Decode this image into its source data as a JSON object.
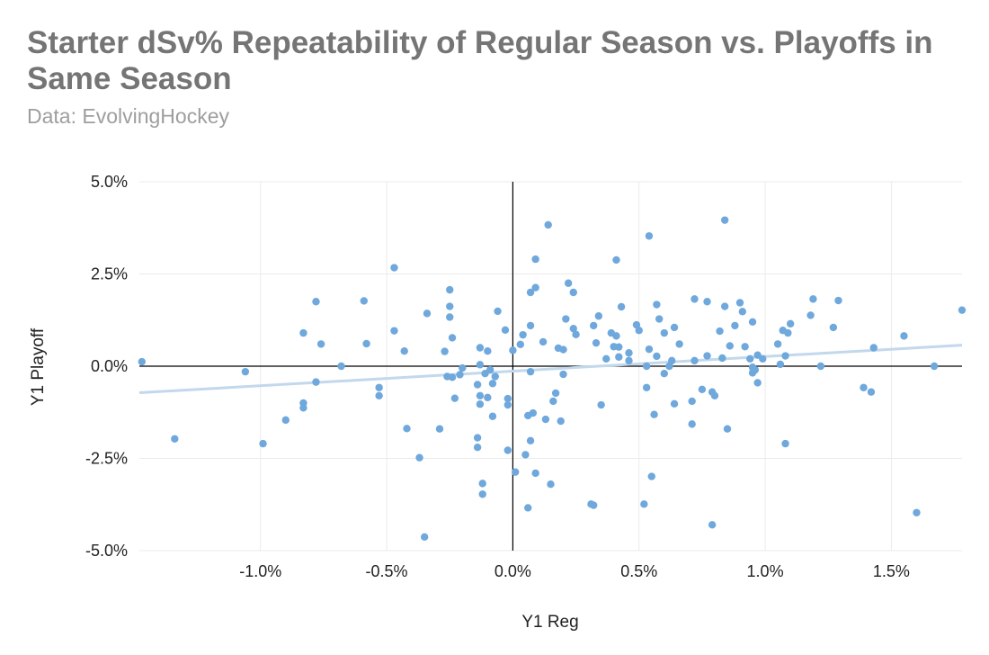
{
  "title": "Starter dSv% Repeatability of Regular Season vs. Playoffs in Same Season",
  "subtitle": "Data: EvolvingHockey",
  "colors": {
    "point": "#6fa8dc",
    "trendline": "#c2d8ec",
    "grid": "#ebebeb",
    "axis": "#000000",
    "title": "#757575",
    "subtitle": "#9e9e9e"
  },
  "chart_data": {
    "type": "scatter",
    "xlabel": "Y1 Reg",
    "ylabel": "Y1 Playoff",
    "xlim": [
      -1.48,
      1.78
    ],
    "ylim": [
      -5.0,
      5.0
    ],
    "x_ticks": [
      -1.0,
      -0.5,
      0.0,
      0.5,
      1.0,
      1.5
    ],
    "x_tick_labels": [
      "-1.0%",
      "-0.5%",
      "0.0%",
      "0.5%",
      "1.0%",
      "1.5%"
    ],
    "y_ticks": [
      -5.0,
      -2.5,
      0.0,
      2.5,
      5.0
    ],
    "y_tick_labels": [
      "-5.0%",
      "-2.5%",
      "0.0%",
      "2.5%",
      "5.0%"
    ],
    "grid": true,
    "legend": "none",
    "trendline": {
      "type": "linear",
      "x": [
        -1.48,
        1.78
      ],
      "y": [
        -0.72,
        0.57
      ]
    },
    "points": [
      [
        -1.47,
        0.12
      ],
      [
        -1.34,
        -1.97
      ],
      [
        -1.06,
        -0.15
      ],
      [
        -0.99,
        -2.1
      ],
      [
        -0.9,
        -1.46
      ],
      [
        -0.83,
        0.9
      ],
      [
        -0.83,
        -1.0
      ],
      [
        -0.83,
        -1.13
      ],
      [
        -0.78,
        1.75
      ],
      [
        -0.78,
        -0.43
      ],
      [
        -0.76,
        0.6
      ],
      [
        -0.68,
        0.0
      ],
      [
        -0.59,
        1.77
      ],
      [
        -0.58,
        0.61
      ],
      [
        -0.53,
        -0.58
      ],
      [
        -0.53,
        -0.8
      ],
      [
        -0.47,
        2.67
      ],
      [
        -0.47,
        0.96
      ],
      [
        -0.43,
        0.41
      ],
      [
        -0.42,
        -1.69
      ],
      [
        -0.37,
        -2.48
      ],
      [
        -0.35,
        -4.63
      ],
      [
        -0.34,
        1.43
      ],
      [
        -0.29,
        -1.7
      ],
      [
        -0.27,
        0.4
      ],
      [
        -0.26,
        -0.28
      ],
      [
        -0.25,
        2.07
      ],
      [
        -0.25,
        1.62
      ],
      [
        -0.25,
        1.33
      ],
      [
        -0.24,
        0.77
      ],
      [
        -0.24,
        -0.3
      ],
      [
        -0.23,
        -0.87
      ],
      [
        -0.21,
        -0.23
      ],
      [
        -0.2,
        -0.05
      ],
      [
        -0.14,
        -1.94
      ],
      [
        -0.14,
        -2.2
      ],
      [
        -0.14,
        -0.5
      ],
      [
        -0.13,
        0.5
      ],
      [
        -0.13,
        0.04
      ],
      [
        -0.13,
        -0.8
      ],
      [
        -0.13,
        -1.03
      ],
      [
        -0.12,
        -3.18
      ],
      [
        -0.12,
        -3.47
      ],
      [
        -0.11,
        -0.2
      ],
      [
        -0.1,
        -0.85
      ],
      [
        -0.1,
        0.41
      ],
      [
        -0.09,
        -0.1
      ],
      [
        -0.08,
        -0.47
      ],
      [
        -0.08,
        -1.36
      ],
      [
        -0.07,
        -0.28
      ],
      [
        -0.06,
        1.49
      ],
      [
        -0.03,
        0.98
      ],
      [
        -0.02,
        -1.05
      ],
      [
        -0.02,
        -0.88
      ],
      [
        -0.02,
        -2.28
      ],
      [
        0.0,
        0.43
      ],
      [
        0.01,
        -2.87
      ],
      [
        0.03,
        0.59
      ],
      [
        0.04,
        0.85
      ],
      [
        0.05,
        -2.4
      ],
      [
        0.06,
        -3.84
      ],
      [
        0.06,
        -1.34
      ],
      [
        0.07,
        1.1
      ],
      [
        0.07,
        -2.02
      ],
      [
        0.07,
        2.0
      ],
      [
        0.07,
        -0.15
      ],
      [
        0.08,
        -1.27
      ],
      [
        0.09,
        2.13
      ],
      [
        0.09,
        2.9
      ],
      [
        0.09,
        -2.9
      ],
      [
        0.12,
        0.66
      ],
      [
        0.13,
        -1.44
      ],
      [
        0.14,
        3.83
      ],
      [
        0.15,
        -3.2
      ],
      [
        0.16,
        -0.95
      ],
      [
        0.17,
        -0.73
      ],
      [
        0.18,
        0.49
      ],
      [
        0.19,
        -1.49
      ],
      [
        0.2,
        -0.22
      ],
      [
        0.2,
        0.45
      ],
      [
        0.21,
        1.28
      ],
      [
        0.22,
        2.25
      ],
      [
        0.24,
        2.0
      ],
      [
        0.24,
        1.02
      ],
      [
        0.25,
        0.86
      ],
      [
        0.31,
        -3.74
      ],
      [
        0.32,
        1.1
      ],
      [
        0.32,
        -3.77
      ],
      [
        0.33,
        0.63
      ],
      [
        0.34,
        1.36
      ],
      [
        0.35,
        -1.05
      ],
      [
        0.37,
        0.2
      ],
      [
        0.39,
        0.9
      ],
      [
        0.4,
        0.53
      ],
      [
        0.41,
        2.88
      ],
      [
        0.41,
        0.82
      ],
      [
        0.42,
        0.52
      ],
      [
        0.42,
        0.25
      ],
      [
        0.43,
        1.61
      ],
      [
        0.46,
        0.36
      ],
      [
        0.46,
        0.15
      ],
      [
        0.49,
        1.12
      ],
      [
        0.5,
        0.97
      ],
      [
        0.52,
        -3.74
      ],
      [
        0.53,
        0.0
      ],
      [
        0.53,
        -0.58
      ],
      [
        0.54,
        3.53
      ],
      [
        0.54,
        0.46
      ],
      [
        0.55,
        -2.99
      ],
      [
        0.56,
        -1.31
      ],
      [
        0.57,
        1.67
      ],
      [
        0.57,
        0.27
      ],
      [
        0.58,
        1.28
      ],
      [
        0.6,
        0.9
      ],
      [
        0.6,
        -0.2
      ],
      [
        0.62,
        0.0
      ],
      [
        0.63,
        0.15
      ],
      [
        0.64,
        1.05
      ],
      [
        0.64,
        -1.02
      ],
      [
        0.66,
        0.6
      ],
      [
        0.71,
        -0.95
      ],
      [
        0.71,
        -1.57
      ],
      [
        0.72,
        1.82
      ],
      [
        0.72,
        0.15
      ],
      [
        0.75,
        -0.63
      ],
      [
        0.77,
        1.75
      ],
      [
        0.77,
        0.28
      ],
      [
        0.79,
        -0.7
      ],
      [
        0.79,
        -4.3
      ],
      [
        0.8,
        -0.8
      ],
      [
        0.82,
        0.95
      ],
      [
        0.83,
        0.22
      ],
      [
        0.84,
        3.96
      ],
      [
        0.84,
        1.62
      ],
      [
        0.85,
        -1.7
      ],
      [
        0.86,
        0.55
      ],
      [
        0.88,
        1.1
      ],
      [
        0.9,
        1.72
      ],
      [
        0.91,
        1.48
      ],
      [
        0.92,
        0.53
      ],
      [
        0.94,
        0.2
      ],
      [
        0.95,
        -0.03
      ],
      [
        0.95,
        -0.18
      ],
      [
        0.95,
        1.2
      ],
      [
        0.96,
        -0.1
      ],
      [
        0.97,
        0.3
      ],
      [
        0.97,
        -0.45
      ],
      [
        0.99,
        0.2
      ],
      [
        1.05,
        0.6
      ],
      [
        1.06,
        0.05
      ],
      [
        1.07,
        0.97
      ],
      [
        1.08,
        0.28
      ],
      [
        1.08,
        -2.1
      ],
      [
        1.09,
        0.9
      ],
      [
        1.1,
        1.15
      ],
      [
        1.18,
        1.38
      ],
      [
        1.19,
        1.82
      ],
      [
        1.22,
        0.0
      ],
      [
        1.27,
        1.05
      ],
      [
        1.29,
        1.78
      ],
      [
        1.39,
        -0.58
      ],
      [
        1.42,
        -0.7
      ],
      [
        1.43,
        0.5
      ],
      [
        1.55,
        0.82
      ],
      [
        1.6,
        -3.97
      ],
      [
        1.67,
        0.0
      ],
      [
        1.78,
        1.52
      ]
    ]
  }
}
